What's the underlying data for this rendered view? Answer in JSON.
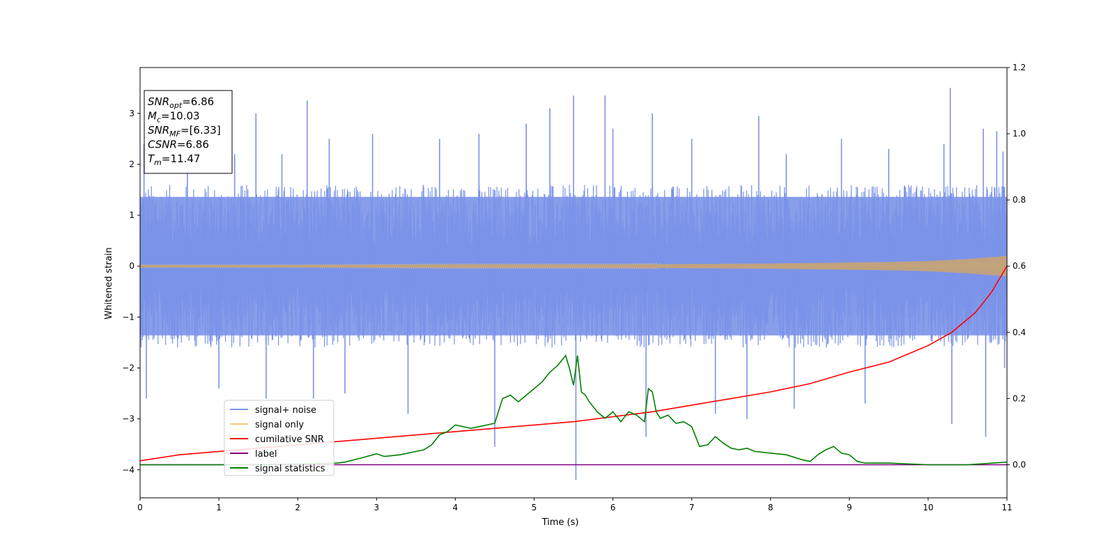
{
  "chart_data": {
    "type": "line",
    "xlabel": "Time (s)",
    "ylabel": "Whitened strain",
    "xlim": [
      0,
      11
    ],
    "ylim": [
      -4.55,
      3.9
    ],
    "y2lim": [
      -0.1,
      1.2
    ],
    "xticks": [
      "0",
      "1",
      "2",
      "3",
      "4",
      "5",
      "6",
      "7",
      "8",
      "9",
      "10",
      "11"
    ],
    "yticks": [
      "−4",
      "−3",
      "−2",
      "−1",
      "0",
      "1",
      "2",
      "3"
    ],
    "y2ticks": [
      "0.0",
      "0.2",
      "0.4",
      "0.6",
      "0.8",
      "1.0",
      "1.2"
    ],
    "grid": false,
    "legend_position": "lower-left",
    "annotation": {
      "lines": [
        {
          "base": "SNR",
          "sub": "opt",
          "value": "=6.86"
        },
        {
          "base": "M",
          "sub": "c",
          "value": "=10.03"
        },
        {
          "base": "SNR",
          "sub": "MF",
          "value": "=[6.33]"
        },
        {
          "base": "CSNR",
          "sub": "",
          "value": "=6.86"
        },
        {
          "base": "T",
          "sub": "m",
          "value": "=11.47"
        }
      ]
    },
    "series": [
      {
        "name": "signal+ noise",
        "color": "#7b93e8",
        "axis": "left",
        "kind": "noise",
        "envelope": {
          "x": [
            0,
            11
          ],
          "low": [
            -1.6,
            -1.6
          ],
          "high": [
            1.6,
            1.6
          ]
        },
        "spikes": [
          {
            "x": 0.05,
            "y": 2.4
          },
          {
            "x": 0.08,
            "y": -2.6
          },
          {
            "x": 0.6,
            "y": 2.3
          },
          {
            "x": 1.0,
            "y": -2.4
          },
          {
            "x": 1.2,
            "y": 2.2
          },
          {
            "x": 1.47,
            "y": 3.0
          },
          {
            "x": 1.6,
            "y": -2.6
          },
          {
            "x": 1.8,
            "y": 2.2
          },
          {
            "x": 2.12,
            "y": 3.25
          },
          {
            "x": 2.2,
            "y": -2.6
          },
          {
            "x": 2.4,
            "y": 2.5
          },
          {
            "x": 2.6,
            "y": -2.5
          },
          {
            "x": 2.95,
            "y": 2.6
          },
          {
            "x": 3.4,
            "y": -2.9
          },
          {
            "x": 3.8,
            "y": 2.5
          },
          {
            "x": 4.3,
            "y": 2.6
          },
          {
            "x": 4.5,
            "y": -3.55
          },
          {
            "x": 4.9,
            "y": 2.8
          },
          {
            "x": 5.2,
            "y": 3.1
          },
          {
            "x": 5.5,
            "y": 3.35
          },
          {
            "x": 5.53,
            "y": -4.2
          },
          {
            "x": 5.9,
            "y": 3.35
          },
          {
            "x": 6.0,
            "y": 2.7
          },
          {
            "x": 6.5,
            "y": 3.0
          },
          {
            "x": 6.42,
            "y": -3.35
          },
          {
            "x": 7.0,
            "y": 2.5
          },
          {
            "x": 7.3,
            "y": -2.9
          },
          {
            "x": 7.7,
            "y": -3.0
          },
          {
            "x": 7.85,
            "y": 2.95
          },
          {
            "x": 8.2,
            "y": 2.2
          },
          {
            "x": 8.3,
            "y": -2.8
          },
          {
            "x": 8.9,
            "y": 2.5
          },
          {
            "x": 9.2,
            "y": -2.7
          },
          {
            "x": 9.5,
            "y": 2.3
          },
          {
            "x": 10.2,
            "y": 2.4
          },
          {
            "x": 10.28,
            "y": 3.5
          },
          {
            "x": 10.3,
            "y": -3.1
          },
          {
            "x": 10.7,
            "y": 2.7
          },
          {
            "x": 10.73,
            "y": -3.35
          },
          {
            "x": 10.87,
            "y": 2.65
          },
          {
            "x": 10.95,
            "y": 2.25
          },
          {
            "x": 10.97,
            "y": -2.0
          }
        ]
      },
      {
        "name": "signal only",
        "color": "#f5c977",
        "axis": "left",
        "kind": "chirp",
        "envelope": {
          "x": [
            0,
            2,
            4,
            6,
            7,
            8,
            9,
            9.5,
            10,
            10.5,
            11
          ],
          "low": [
            -0.02,
            -0.02,
            -0.03,
            -0.03,
            -0.04,
            -0.05,
            -0.07,
            -0.08,
            -0.1,
            -0.14,
            -0.2
          ],
          "high": [
            0.02,
            0.02,
            0.03,
            0.03,
            0.04,
            0.05,
            0.07,
            0.08,
            0.1,
            0.14,
            0.2
          ]
        }
      },
      {
        "name": "cumilative SNR",
        "color": "#ff0000",
        "axis": "right",
        "kind": "line",
        "x": [
          0,
          0.5,
          1,
          1.5,
          2,
          2.5,
          3,
          3.5,
          4,
          4.5,
          5,
          5.5,
          6,
          6.5,
          7,
          7.5,
          8,
          8.5,
          9,
          9.5,
          10,
          10.3,
          10.6,
          10.8,
          11
        ],
        "y": [
          0.012,
          0.03,
          0.04,
          0.05,
          0.06,
          0.07,
          0.08,
          0.09,
          0.1,
          0.11,
          0.12,
          0.13,
          0.145,
          0.16,
          0.18,
          0.2,
          0.22,
          0.245,
          0.28,
          0.31,
          0.36,
          0.4,
          0.46,
          0.52,
          0.6
        ]
      },
      {
        "name": "label",
        "color": "#800080",
        "axis": "right",
        "kind": "line",
        "x": [
          0,
          11
        ],
        "y": [
          0.0,
          0.0
        ]
      },
      {
        "name": "signal statistics",
        "color": "#008000",
        "axis": "right",
        "kind": "line",
        "x": [
          0,
          1,
          2,
          2.5,
          2.6,
          2.8,
          3.0,
          3.1,
          3.3,
          3.4,
          3.5,
          3.6,
          3.7,
          3.8,
          3.9,
          4.0,
          4.1,
          4.2,
          4.3,
          4.4,
          4.5,
          4.6,
          4.7,
          4.8,
          4.9,
          5.0,
          5.1,
          5.2,
          5.3,
          5.4,
          5.45,
          5.5,
          5.55,
          5.6,
          5.65,
          5.7,
          5.8,
          5.9,
          6.0,
          6.1,
          6.2,
          6.3,
          6.4,
          6.45,
          6.5,
          6.55,
          6.6,
          6.7,
          6.8,
          6.9,
          7.0,
          7.1,
          7.2,
          7.3,
          7.4,
          7.5,
          7.6,
          7.7,
          7.8,
          8.0,
          8.2,
          8.4,
          8.5,
          8.6,
          8.7,
          8.8,
          8.9,
          9.0,
          9.1,
          9.2,
          9.5,
          9.8,
          10.0,
          10.5,
          11.0
        ],
        "y": [
          0.0,
          0.0,
          0.002,
          0.005,
          0.008,
          0.02,
          0.033,
          0.025,
          0.03,
          0.035,
          0.04,
          0.045,
          0.06,
          0.09,
          0.1,
          0.12,
          0.115,
          0.11,
          0.115,
          0.12,
          0.125,
          0.2,
          0.21,
          0.19,
          0.21,
          0.23,
          0.25,
          0.28,
          0.3,
          0.33,
          0.29,
          0.24,
          0.33,
          0.22,
          0.21,
          0.19,
          0.16,
          0.14,
          0.16,
          0.13,
          0.16,
          0.15,
          0.13,
          0.23,
          0.22,
          0.16,
          0.14,
          0.15,
          0.125,
          0.13,
          0.115,
          0.055,
          0.06,
          0.085,
          0.065,
          0.05,
          0.045,
          0.05,
          0.04,
          0.035,
          0.03,
          0.015,
          0.01,
          0.03,
          0.045,
          0.055,
          0.035,
          0.03,
          0.01,
          0.005,
          0.005,
          0.002,
          0.0,
          0.0,
          0.008
        ]
      }
    ]
  }
}
